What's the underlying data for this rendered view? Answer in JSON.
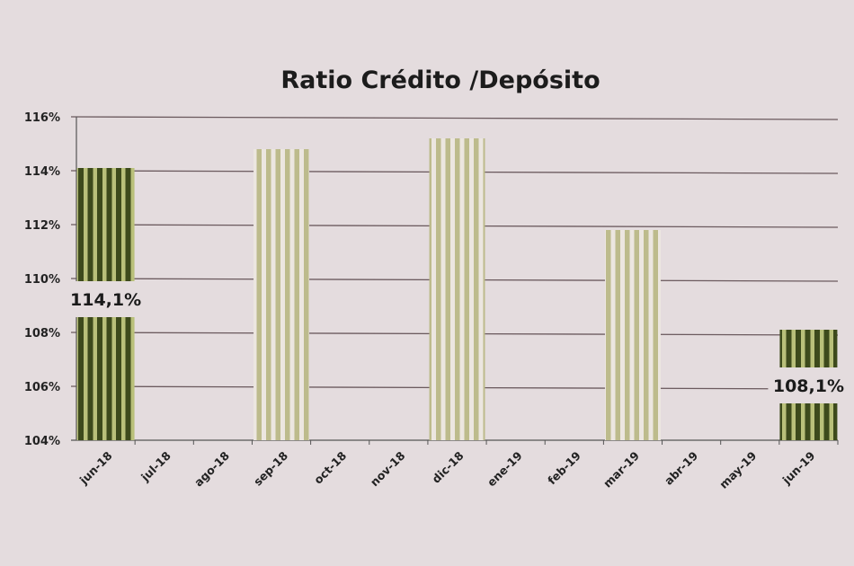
{
  "chart_data": {
    "type": "bar",
    "title": "Ratio Crédito /Depósito",
    "xlabel": "",
    "ylabel": "",
    "ylim": [
      104,
      116
    ],
    "yticks": [
      "104%",
      "106%",
      "108%",
      "110%",
      "112%",
      "114%",
      "116%"
    ],
    "grid": true,
    "categories": [
      "jun-18",
      "jul-18",
      "ago-18",
      "sep-18",
      "oct-18",
      "nov-18",
      "dic-18",
      "ene-19",
      "feb-19",
      "mar-19",
      "abr-19",
      "may-19",
      "jun-19"
    ],
    "values": [
      114.1,
      null,
      null,
      114.8,
      null,
      null,
      115.2,
      null,
      null,
      111.8,
      null,
      null,
      108.1
    ],
    "highlighted": [
      "jun-18",
      "jun-19"
    ],
    "data_labels": {
      "jun-18": "114,1%",
      "jun-19": "108,1%"
    },
    "colors": {
      "highlight_dark": "#3d4a1c",
      "highlight_light": "#b9c07a",
      "normal_stripe": "#bdbb8c",
      "normal_gap": "#ece6e0",
      "grid": "#6b5a5e",
      "background": "#e4dcde"
    }
  }
}
